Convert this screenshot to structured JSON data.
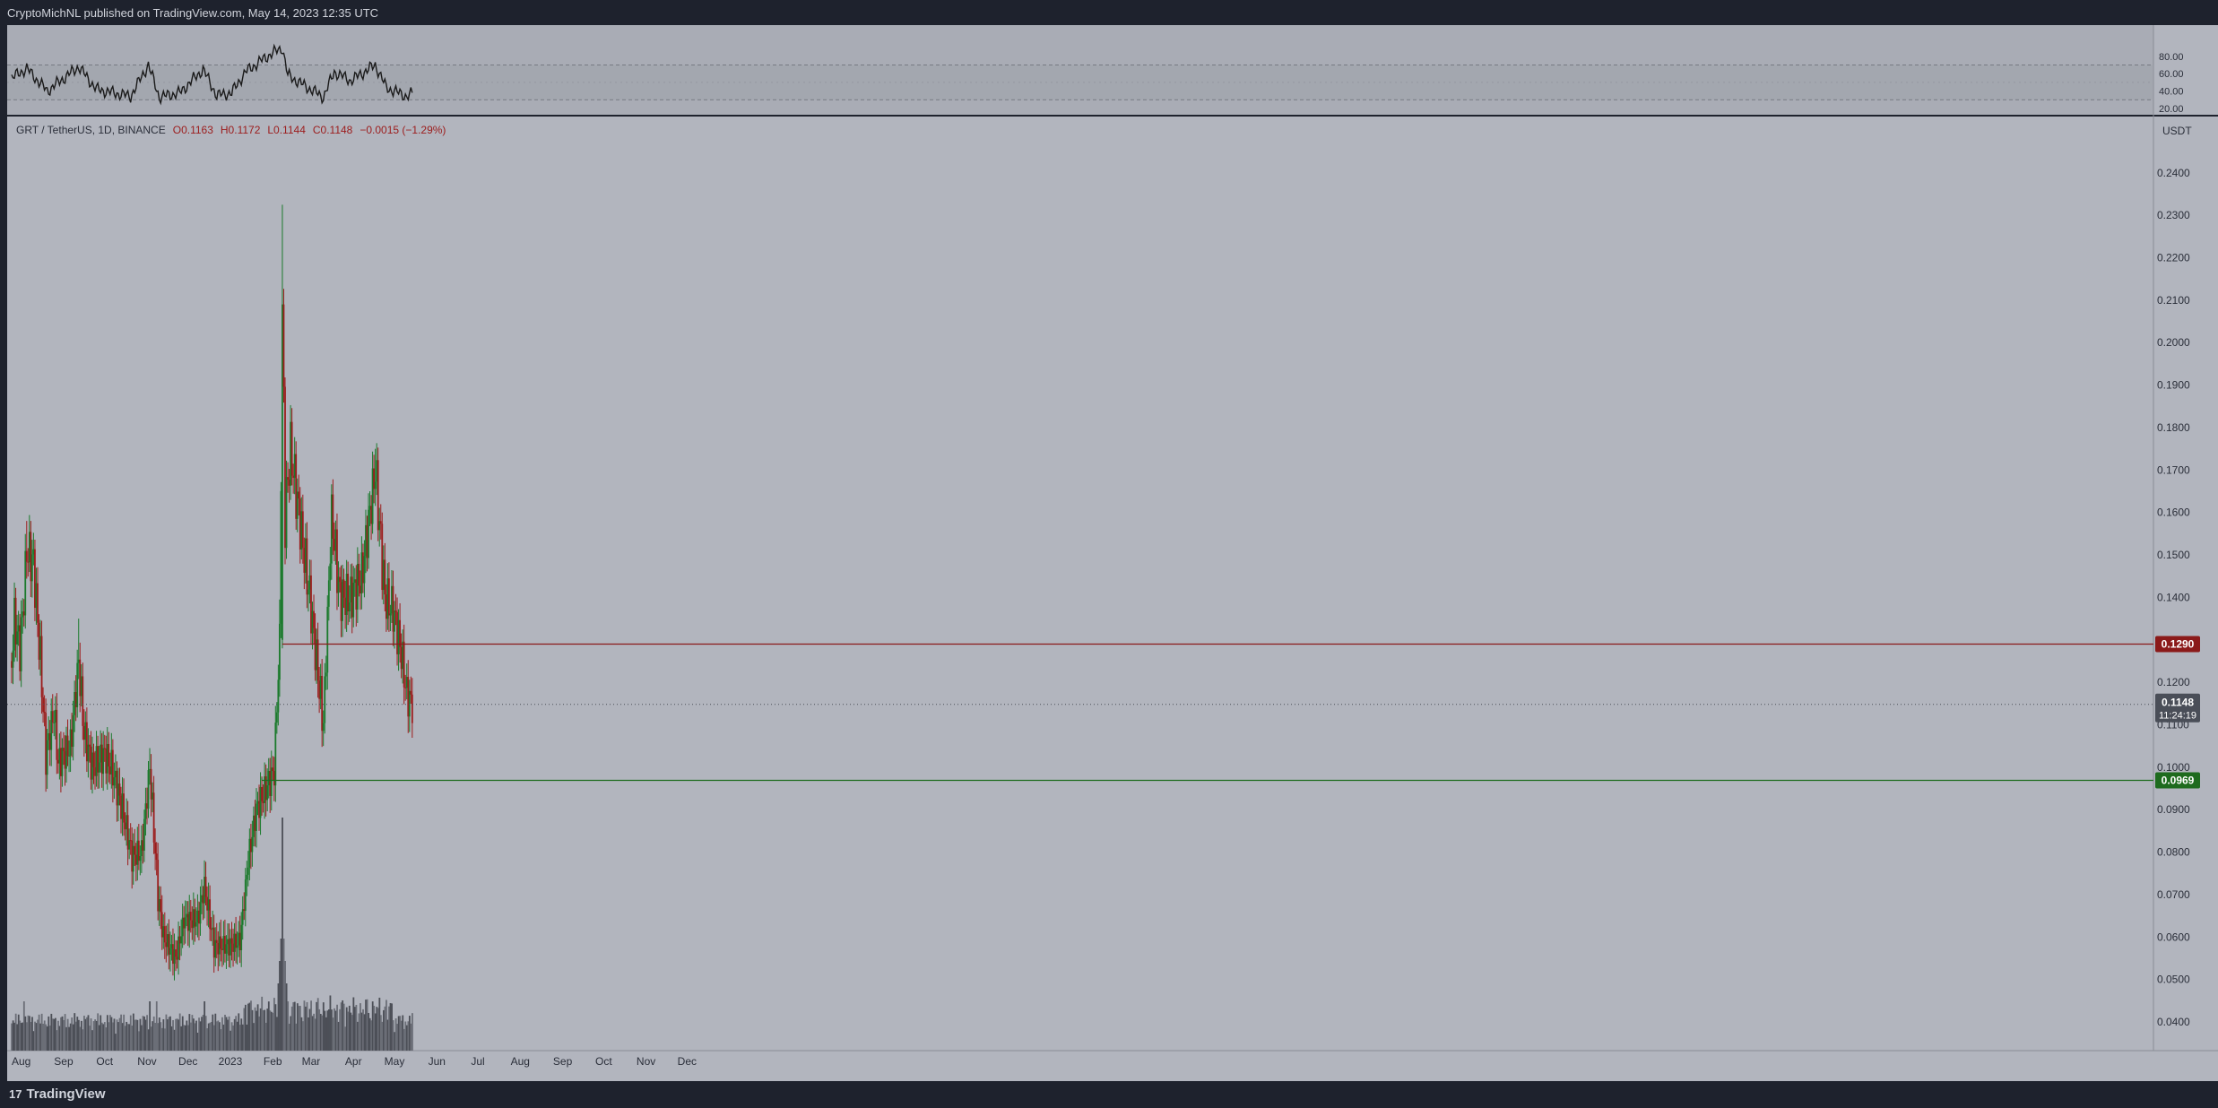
{
  "header": {
    "publish_text": "CryptoMichNL published on TradingView.com, May 14, 2023 12:35 UTC"
  },
  "footer": {
    "logo_text": "TradingView",
    "logo_mark": "17"
  },
  "colors": {
    "background": "#b2b5be",
    "frame": "#1e222d",
    "bull": "#1b7a2c",
    "bear": "#9c1c1c",
    "resistance": "#8b1a1a",
    "support": "#1e6b1e",
    "price_label": "#4a4e58",
    "volume": "#5a5d66",
    "rsi_line": "#1a1a1a"
  },
  "legend": {
    "symbol": "GRT / TetherUS, 1D, BINANCE",
    "open": "O0.1163",
    "high": "H0.1172",
    "low": "L0.1144",
    "close": "C0.1148",
    "change": "−0.0015 (−1.29%)"
  },
  "chart_data": {
    "type": "candlestick",
    "symbol": "GRT / TetherUS",
    "interval": "1D",
    "exchange": "BINANCE",
    "currency": "USDT",
    "ylim": [
      0.034,
      0.244
    ],
    "y_ticks": [
      "0.2400",
      "0.2300",
      "0.2200",
      "0.2100",
      "0.2000",
      "0.1900",
      "0.1800",
      "0.1700",
      "0.1600",
      "0.1500",
      "0.1400",
      "0.1300",
      "0.1200",
      "0.1100",
      "0.1000",
      "0.0900",
      "0.0800",
      "0.0700",
      "0.0600",
      "0.0500",
      "0.0400"
    ],
    "x_ticks": [
      "Aug",
      "Sep",
      "Oct",
      "Nov",
      "Dec",
      "2023",
      "Feb",
      "Mar",
      "Apr",
      "May",
      "Jun",
      "Jul",
      "Aug",
      "Sep",
      "Oct",
      "Nov",
      "Dec"
    ],
    "horizontal_levels": [
      {
        "label": "0.1290",
        "value": 0.129,
        "color": "resistance",
        "from": "2023-02-08"
      },
      {
        "label": "0.0969",
        "value": 0.0969,
        "color": "support",
        "from": "2023-01-24"
      }
    ],
    "last_price": {
      "label": "0.1148",
      "countdown": "11:24:19",
      "value": 0.1148
    },
    "price_anchors": [
      [
        "2022-07-25",
        0.125
      ],
      [
        "2022-07-27",
        0.135
      ],
      [
        "2022-07-31",
        0.128
      ],
      [
        "2022-08-03",
        0.14
      ],
      [
        "2022-08-05",
        0.151
      ],
      [
        "2022-08-10",
        0.148
      ],
      [
        "2022-08-15",
        0.125
      ],
      [
        "2022-08-19",
        0.103
      ],
      [
        "2022-08-25",
        0.113
      ],
      [
        "2022-08-28",
        0.101
      ],
      [
        "2022-09-06",
        0.105
      ],
      [
        "2022-09-12",
        0.125
      ],
      [
        "2022-09-16",
        0.108
      ],
      [
        "2022-09-22",
        0.1
      ],
      [
        "2022-10-01",
        0.103
      ],
      [
        "2022-10-06",
        0.1
      ],
      [
        "2022-10-14",
        0.09
      ],
      [
        "2022-10-21",
        0.079
      ],
      [
        "2022-10-28",
        0.08
      ],
      [
        "2022-11-03",
        0.1
      ],
      [
        "2022-11-09",
        0.07
      ],
      [
        "2022-11-13",
        0.06
      ],
      [
        "2022-11-22",
        0.055
      ],
      [
        "2022-11-28",
        0.064
      ],
      [
        "2022-12-08",
        0.064
      ],
      [
        "2022-12-13",
        0.072
      ],
      [
        "2022-12-20",
        0.058
      ],
      [
        "2022-12-31",
        0.058
      ],
      [
        "2023-01-08",
        0.059
      ],
      [
        "2023-01-14",
        0.078
      ],
      [
        "2023-01-20",
        0.09
      ],
      [
        "2023-01-27",
        0.095
      ],
      [
        "2023-02-02",
        0.099
      ],
      [
        "2023-02-06",
        0.13
      ],
      [
        "2023-02-08",
        0.209
      ],
      [
        "2023-02-10",
        0.16
      ],
      [
        "2023-02-14",
        0.175
      ],
      [
        "2023-02-20",
        0.16
      ],
      [
        "2023-02-28",
        0.14
      ],
      [
        "2023-03-10",
        0.11
      ],
      [
        "2023-03-16",
        0.16
      ],
      [
        "2023-03-22",
        0.14
      ],
      [
        "2023-03-30",
        0.14
      ],
      [
        "2023-04-07",
        0.145
      ],
      [
        "2023-04-17",
        0.17
      ],
      [
        "2023-04-24",
        0.14
      ],
      [
        "2023-04-30",
        0.137
      ],
      [
        "2023-05-06",
        0.127
      ],
      [
        "2023-05-10",
        0.117
      ],
      [
        "2023-05-14",
        0.1148
      ]
    ],
    "volume_peak_date": "2023-02-08"
  },
  "rsi_data": {
    "ylim": [
      20,
      80
    ],
    "y_ticks": [
      "80.00",
      "60.00",
      "40.00",
      "20.00"
    ],
    "bands": [
      30,
      70
    ],
    "anchors": [
      [
        "2022-07-25",
        55
      ],
      [
        "2022-08-05",
        66
      ],
      [
        "2022-08-20",
        40
      ],
      [
        "2022-09-12",
        68
      ],
      [
        "2022-09-25",
        42
      ],
      [
        "2022-10-20",
        34
      ],
      [
        "2022-11-02",
        70
      ],
      [
        "2022-11-10",
        33
      ],
      [
        "2022-11-25",
        38
      ],
      [
        "2022-12-12",
        65
      ],
      [
        "2022-12-22",
        35
      ],
      [
        "2023-01-02",
        38
      ],
      [
        "2023-01-12",
        62
      ],
      [
        "2023-01-28",
        80
      ],
      [
        "2023-02-08",
        90
      ],
      [
        "2023-02-12",
        58
      ],
      [
        "2023-03-10",
        33
      ],
      [
        "2023-03-18",
        62
      ],
      [
        "2023-03-30",
        52
      ],
      [
        "2023-04-17",
        70
      ],
      [
        "2023-04-25",
        44
      ],
      [
        "2023-05-10",
        34
      ],
      [
        "2023-05-14",
        37
      ]
    ]
  }
}
